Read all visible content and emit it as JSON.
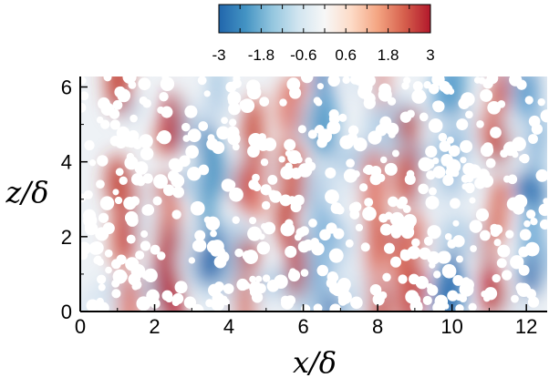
{
  "chart_data": {
    "type": "heatmap",
    "title": "",
    "xlabel": "x/δ",
    "ylabel": "z/δ",
    "xlim": [
      0,
      12.56
    ],
    "ylim": [
      0,
      6.28
    ],
    "x_ticks": [
      0,
      2,
      4,
      6,
      8,
      10,
      12
    ],
    "y_ticks": [
      0,
      2,
      4,
      6
    ],
    "colorbar": {
      "range": [
        -3,
        3
      ],
      "tick_values": [
        -3,
        -1.8,
        -0.6,
        0.6,
        1.8,
        3
      ],
      "tick_labels": [
        "-3",
        "-1.8",
        "-0.6",
        "0.6",
        "1.8",
        "3"
      ],
      "colors": [
        "#2166ac",
        "#4393c3",
        "#92c5de",
        "#d1e5f0",
        "#f7f7f7",
        "#fddbc7",
        "#f4a582",
        "#d6604d",
        "#b2182b"
      ],
      "location": "top"
    },
    "field": {
      "description_of_pattern": "alternating streamwise-elongated high/low streaks",
      "streaks": [
        {
          "x": 1.2,
          "sign": 1
        },
        {
          "x": 2.4,
          "sign": 1
        },
        {
          "x": 3.5,
          "sign": -1
        },
        {
          "x": 4.6,
          "sign": 1
        },
        {
          "x": 5.7,
          "sign": 1
        },
        {
          "x": 6.6,
          "sign": -1
        },
        {
          "x": 7.9,
          "sign": 1
        },
        {
          "x": 8.8,
          "sign": 1
        },
        {
          "x": 9.9,
          "sign": -1
        },
        {
          "x": 11.2,
          "sign": 1
        },
        {
          "x": 12.1,
          "sign": -1
        }
      ]
    },
    "particles": {
      "color": "#ffffff",
      "approx_count": 520
    },
    "grid": false
  }
}
